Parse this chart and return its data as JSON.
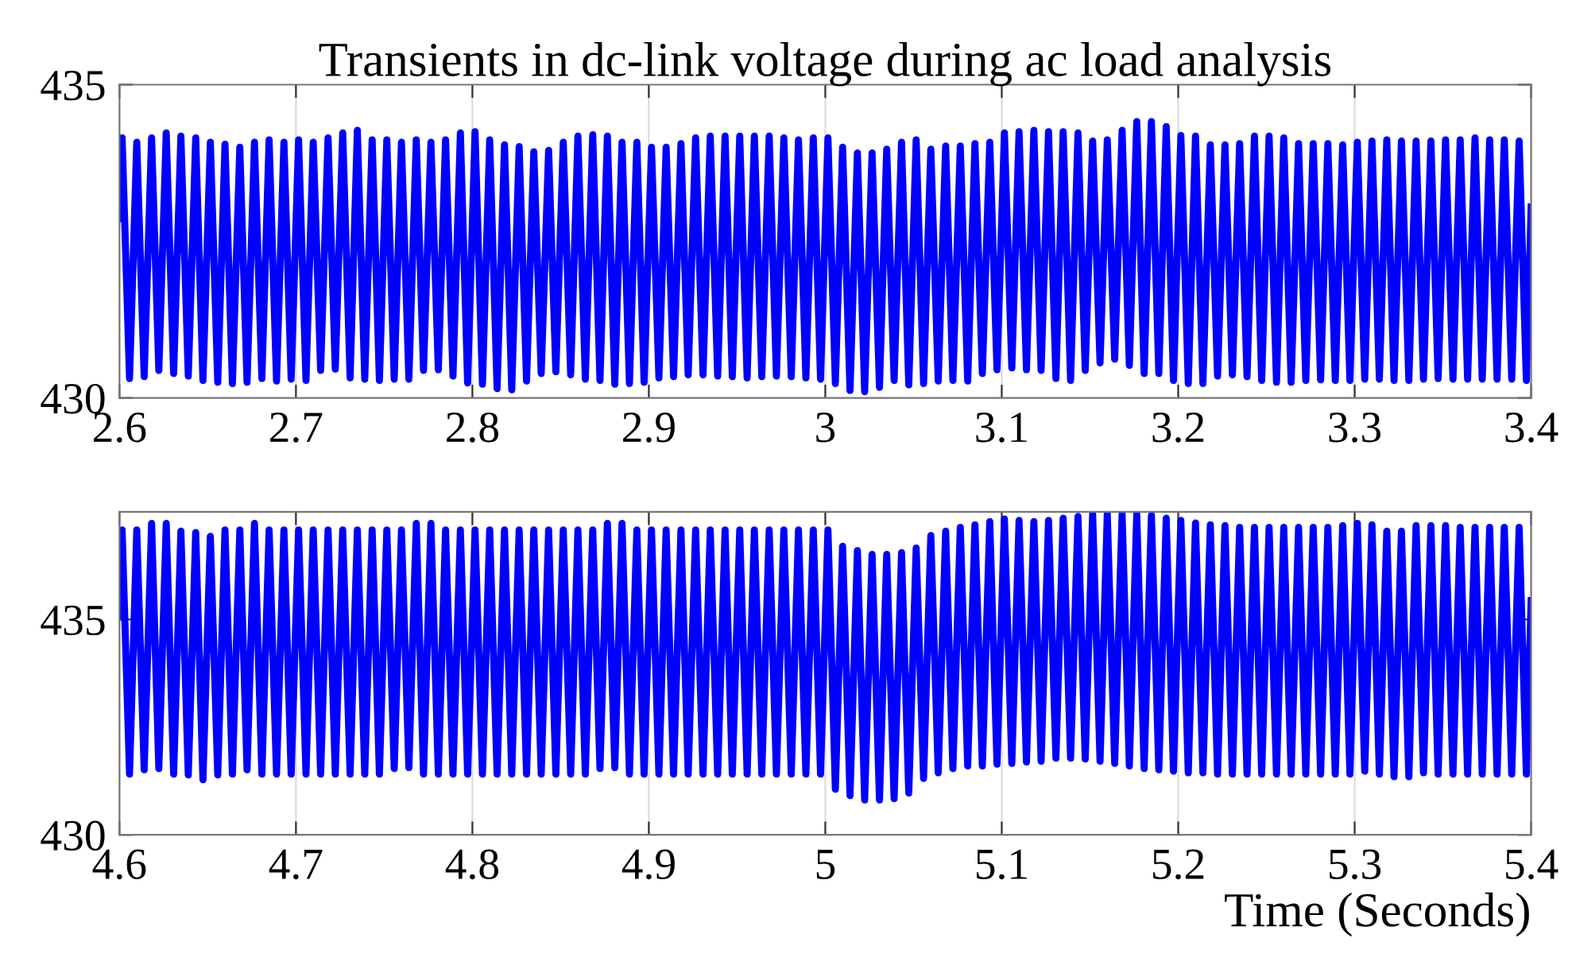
{
  "chart_data": [
    {
      "type": "line",
      "title": "Transients in dc-link voltage during ac load analysis",
      "xlim": [
        2.6,
        3.4
      ],
      "ylim": [
        430,
        435
      ],
      "xticks": [
        2.6,
        2.7,
        2.8,
        2.9,
        3,
        3.1,
        3.2,
        3.3,
        3.4
      ],
      "yticks": [
        430,
        435
      ],
      "grid": "x",
      "x": [
        2.6,
        2.6015,
        2.6057,
        2.6098,
        2.614,
        2.6182,
        2.6223,
        2.6265,
        2.6307,
        2.6348,
        2.639,
        2.6432,
        2.6473,
        2.6515,
        2.6557,
        2.6598,
        2.664,
        2.6682,
        2.6723,
        2.6765,
        2.6807,
        2.6848,
        2.689,
        2.6932,
        2.6973,
        2.7015,
        2.7057,
        2.7098,
        2.714,
        2.7182,
        2.7223,
        2.7265,
        2.7307,
        2.7348,
        2.739,
        2.7432,
        2.7473,
        2.7515,
        2.7557,
        2.7598,
        2.764,
        2.7682,
        2.7723,
        2.7765,
        2.7807,
        2.7848,
        2.789,
        2.7932,
        2.7973,
        2.8015,
        2.8057,
        2.8098,
        2.814,
        2.8182,
        2.8223,
        2.8265,
        2.8307,
        2.8348,
        2.839,
        2.8432,
        2.8473,
        2.8515,
        2.8557,
        2.8598,
        2.864,
        2.8682,
        2.8723,
        2.8765,
        2.8807,
        2.8848,
        2.889,
        2.8932,
        2.8973,
        2.9015,
        2.9057,
        2.9098,
        2.914,
        2.9182,
        2.9223,
        2.9265,
        2.9307,
        2.9348,
        2.939,
        2.9432,
        2.9473,
        2.9515,
        2.9557,
        2.9598,
        2.964,
        2.9682,
        2.9723,
        2.9765,
        2.9807,
        2.9848,
        2.989,
        2.9932,
        2.9973,
        3.0015,
        3.0057,
        3.0098,
        3.014,
        3.0182,
        3.0223,
        3.0265,
        3.0307,
        3.0348,
        3.039,
        3.0432,
        3.0473,
        3.0515,
        3.0557,
        3.0598,
        3.064,
        3.0682,
        3.0723,
        3.0765,
        3.0807,
        3.0848,
        3.089,
        3.0932,
        3.0973,
        3.1015,
        3.1057,
        3.1098,
        3.114,
        3.1182,
        3.1223,
        3.1265,
        3.1307,
        3.1348,
        3.139,
        3.1432,
        3.1473,
        3.1515,
        3.1557,
        3.1598,
        3.164,
        3.1682,
        3.1723,
        3.1765,
        3.1807,
        3.1848,
        3.189,
        3.1932,
        3.1973,
        3.2015,
        3.2057,
        3.2098,
        3.214,
        3.2182,
        3.2223,
        3.2265,
        3.2307,
        3.2348,
        3.239,
        3.2432,
        3.2473,
        3.2515,
        3.2557,
        3.2598,
        3.264,
        3.2682,
        3.2723,
        3.2765,
        3.2807,
        3.2848,
        3.289,
        3.2932,
        3.2973,
        3.3015,
        3.3057,
        3.3098,
        3.314,
        3.3182,
        3.3223,
        3.3265,
        3.3307,
        3.3348,
        3.339,
        3.3432,
        3.3473,
        3.3515,
        3.3557,
        3.3598,
        3.364,
        3.3682,
        3.3723,
        3.3765,
        3.3807,
        3.3848,
        3.389,
        3.3932,
        3.3973,
        3.4
      ],
      "series": [
        {
          "color": "#0000ff",
          "values": [
            432.86,
            434.15,
            430.31,
            434.08,
            430.34,
            434.15,
            430.44,
            434.23,
            430.39,
            434.18,
            430.35,
            434.15,
            430.28,
            434.08,
            430.25,
            434.05,
            430.23,
            434.0,
            430.25,
            434.08,
            430.31,
            434.12,
            430.27,
            434.08,
            430.3,
            434.12,
            430.28,
            434.08,
            430.44,
            434.15,
            430.46,
            434.23,
            430.32,
            434.27,
            430.3,
            434.12,
            430.28,
            434.12,
            430.3,
            434.08,
            430.3,
            434.12,
            430.44,
            434.08,
            430.45,
            434.12,
            430.35,
            434.23,
            430.24,
            434.25,
            430.22,
            434.12,
            430.15,
            434.04,
            430.13,
            434.01,
            430.27,
            433.93,
            430.39,
            433.95,
            430.42,
            434.08,
            430.37,
            434.18,
            430.3,
            434.2,
            430.28,
            434.18,
            430.22,
            434.08,
            430.23,
            434.08,
            430.25,
            434.0,
            430.32,
            434.0,
            430.34,
            434.06,
            430.37,
            434.15,
            430.37,
            434.18,
            430.35,
            434.18,
            430.34,
            434.18,
            430.32,
            434.18,
            430.34,
            434.18,
            430.35,
            434.15,
            430.34,
            434.12,
            430.32,
            434.15,
            430.3,
            434.15,
            430.23,
            434.0,
            430.12,
            433.91,
            430.1,
            433.91,
            430.17,
            433.97,
            430.28,
            434.08,
            430.21,
            434.12,
            430.23,
            433.97,
            430.27,
            434.02,
            430.28,
            434.02,
            430.27,
            434.06,
            430.39,
            434.08,
            430.45,
            434.23,
            430.48,
            434.25,
            430.45,
            434.27,
            430.44,
            434.25,
            430.31,
            434.25,
            430.28,
            434.23,
            430.44,
            434.1,
            430.56,
            434.12,
            430.62,
            434.27,
            430.52,
            434.41,
            430.39,
            434.41,
            430.39,
            434.33,
            430.28,
            434.19,
            430.23,
            434.18,
            430.23,
            434.04,
            430.35,
            434.04,
            430.37,
            434.06,
            430.34,
            434.18,
            430.28,
            434.18,
            430.25,
            434.15,
            430.25,
            434.06,
            430.28,
            434.06,
            430.29,
            434.06,
            430.28,
            434.04,
            430.28,
            434.08,
            430.3,
            434.1,
            430.3,
            434.12,
            430.28,
            434.1,
            430.28,
            434.1,
            430.3,
            434.1,
            430.31,
            434.12,
            430.3,
            434.12,
            430.3,
            434.15,
            430.3,
            434.12,
            430.3,
            434.12,
            430.3,
            434.1,
            430.28,
            433.05
          ]
        }
      ]
    },
    {
      "type": "line",
      "xlabel": "Time (Seconds)",
      "xlim": [
        4.6,
        5.4
      ],
      "ylim": [
        430,
        437.5
      ],
      "xticks": [
        4.6,
        4.7,
        4.8,
        4.9,
        5,
        5.1,
        5.2,
        5.3,
        5.4
      ],
      "yticks": [
        430,
        435
      ],
      "grid": "x",
      "x": [
        4.6,
        4.6015,
        4.6057,
        4.6098,
        4.614,
        4.6182,
        4.6223,
        4.6265,
        4.6307,
        4.6348,
        4.639,
        4.6432,
        4.6473,
        4.6515,
        4.6557,
        4.6598,
        4.664,
        4.6682,
        4.6723,
        4.6765,
        4.6807,
        4.6848,
        4.689,
        4.6932,
        4.6973,
        4.7015,
        4.7057,
        4.7098,
        4.714,
        4.7182,
        4.7223,
        4.7265,
        4.7307,
        4.7348,
        4.739,
        4.7432,
        4.7473,
        4.7515,
        4.7557,
        4.7598,
        4.764,
        4.7682,
        4.7723,
        4.7765,
        4.7807,
        4.7848,
        4.789,
        4.7932,
        4.7973,
        4.8015,
        4.8057,
        4.8098,
        4.814,
        4.8182,
        4.8223,
        4.8265,
        4.8307,
        4.8348,
        4.839,
        4.8432,
        4.8473,
        4.8515,
        4.8557,
        4.8598,
        4.864,
        4.8682,
        4.8723,
        4.8765,
        4.8807,
        4.8848,
        4.889,
        4.8932,
        4.8973,
        4.9015,
        4.9057,
        4.9098,
        4.914,
        4.9182,
        4.9223,
        4.9265,
        4.9307,
        4.9348,
        4.939,
        4.9432,
        4.9473,
        4.9515,
        4.9557,
        4.9598,
        4.964,
        4.9682,
        4.9723,
        4.9765,
        4.9807,
        4.9848,
        4.989,
        4.9932,
        4.9973,
        5.0015,
        5.0057,
        5.0098,
        5.014,
        5.0182,
        5.0223,
        5.0265,
        5.0307,
        5.0348,
        5.039,
        5.0432,
        5.0473,
        5.0515,
        5.0557,
        5.0598,
        5.064,
        5.0682,
        5.0723,
        5.0765,
        5.0807,
        5.0848,
        5.089,
        5.0932,
        5.0973,
        5.1015,
        5.1057,
        5.1098,
        5.114,
        5.1182,
        5.1223,
        5.1265,
        5.1307,
        5.1348,
        5.139,
        5.1432,
        5.1473,
        5.1515,
        5.1557,
        5.1598,
        5.164,
        5.1682,
        5.1723,
        5.1765,
        5.1807,
        5.1848,
        5.189,
        5.1932,
        5.1973,
        5.2015,
        5.2057,
        5.2098,
        5.214,
        5.2182,
        5.2223,
        5.2265,
        5.2307,
        5.2348,
        5.239,
        5.2432,
        5.2473,
        5.2515,
        5.2557,
        5.2598,
        5.264,
        5.2682,
        5.2723,
        5.2765,
        5.2807,
        5.2848,
        5.289,
        5.2932,
        5.2973,
        5.3015,
        5.3057,
        5.3098,
        5.314,
        5.3182,
        5.3223,
        5.3265,
        5.3307,
        5.3348,
        5.339,
        5.3432,
        5.3473,
        5.3515,
        5.3557,
        5.3598,
        5.364,
        5.3682,
        5.3723,
        5.3765,
        5.3807,
        5.3848,
        5.389,
        5.3932,
        5.3973,
        5.4
      ],
      "series": [
        {
          "color": "#0000ff",
          "values": [
            435.06,
            437.08,
            431.41,
            437.08,
            431.51,
            437.23,
            431.54,
            437.23,
            431.41,
            437.05,
            431.39,
            437.02,
            431.28,
            436.93,
            431.39,
            437.08,
            431.41,
            437.08,
            431.51,
            437.23,
            431.41,
            437.08,
            431.41,
            437.08,
            431.41,
            437.08,
            431.41,
            437.08,
            431.41,
            437.08,
            431.41,
            437.08,
            431.41,
            437.08,
            431.41,
            437.08,
            431.41,
            437.08,
            431.54,
            437.08,
            431.56,
            437.23,
            431.41,
            437.23,
            431.41,
            437.08,
            431.41,
            437.08,
            431.41,
            437.08,
            431.41,
            437.08,
            431.41,
            437.08,
            431.41,
            437.08,
            431.41,
            437.08,
            431.41,
            437.08,
            431.41,
            437.08,
            431.41,
            437.08,
            431.41,
            437.08,
            431.54,
            437.23,
            431.56,
            437.23,
            431.41,
            437.08,
            431.41,
            437.08,
            431.41,
            437.08,
            431.41,
            437.08,
            431.41,
            437.08,
            431.41,
            437.08,
            431.41,
            437.08,
            431.41,
            437.08,
            431.41,
            437.08,
            431.41,
            437.08,
            431.41,
            437.08,
            431.41,
            437.08,
            431.41,
            437.08,
            431.41,
            437.08,
            431.06,
            436.7,
            430.91,
            436.6,
            430.81,
            436.51,
            430.81,
            436.51,
            430.84,
            436.55,
            430.97,
            436.66,
            431.31,
            436.95,
            431.44,
            437.05,
            431.54,
            437.14,
            431.6,
            437.2,
            431.6,
            437.27,
            431.64,
            437.33,
            431.66,
            437.3,
            431.69,
            437.27,
            431.71,
            437.3,
            431.78,
            437.35,
            431.78,
            437.39,
            431.76,
            437.45,
            431.71,
            437.45,
            431.66,
            437.45,
            431.6,
            437.45,
            431.54,
            437.42,
            431.51,
            437.35,
            431.48,
            437.3,
            431.44,
            437.24,
            431.44,
            437.2,
            431.41,
            437.18,
            431.41,
            437.14,
            431.41,
            437.14,
            431.41,
            437.14,
            431.41,
            437.14,
            431.41,
            437.14,
            431.41,
            437.14,
            431.41,
            437.14,
            431.41,
            437.18,
            431.41,
            437.23,
            431.48,
            437.2,
            431.41,
            437.05,
            431.35,
            437.05,
            431.35,
            437.18,
            431.44,
            437.18,
            431.41,
            437.18,
            431.41,
            437.14,
            431.41,
            437.14,
            431.41,
            437.14,
            431.41,
            437.14,
            431.41,
            437.14,
            431.41,
            435.44
          ]
        }
      ]
    }
  ]
}
